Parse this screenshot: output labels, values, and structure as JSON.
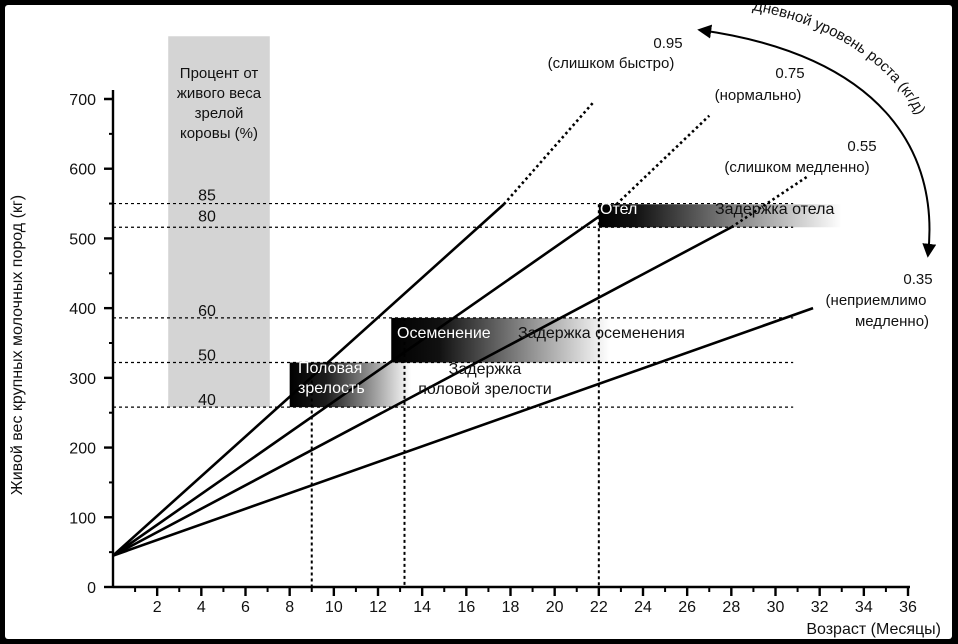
{
  "chart_data": {
    "type": "line",
    "title": "",
    "xlabel": "Возраст (Месяцы)",
    "ylabel": "Живой вес крупных молочных пород (кг)",
    "xlim": [
      0,
      36
    ],
    "ylim": [
      0,
      700
    ],
    "x_ticks": [
      "2",
      "4",
      "6",
      "8",
      "10",
      "12",
      "14",
      "16",
      "18",
      "20",
      "22",
      "24",
      "26",
      "28",
      "30",
      "32",
      "34",
      "36"
    ],
    "y_ticks": [
      "0",
      "100",
      "200",
      "300",
      "400",
      "500",
      "600",
      "700"
    ],
    "series": [
      {
        "name": "0.95",
        "start": [
          0,
          45
        ],
        "end": [
          17.7,
          549
        ],
        "dotted_end": [
          21.8,
          697
        ],
        "label_lines": [
          "0.95",
          "(слишком быстро)"
        ]
      },
      {
        "name": "0.75",
        "start": [
          0,
          45
        ],
        "end": [
          22.8,
          549
        ],
        "dotted_end": [
          27.0,
          676
        ],
        "label_lines": [
          "0.75",
          "(нормально)"
        ]
      },
      {
        "name": "0.55",
        "start": [
          0,
          45
        ],
        "end": [
          28.0,
          516
        ],
        "dotted_end": [
          31.5,
          590
        ],
        "label_lines": [
          "0.55",
          "(слишком медленно)"
        ]
      },
      {
        "name": "0.35",
        "start": [
          0,
          45
        ],
        "end": [
          31.7,
          400
        ],
        "dotted_end": null,
        "label_lines": [
          "0.35",
          "(неприемлимо",
          "медленно)"
        ]
      }
    ],
    "reference_weights": [
      {
        "percent": "85",
        "weight": 550
      },
      {
        "percent": "80",
        "weight": 516
      },
      {
        "percent": "60",
        "weight": 386
      },
      {
        "percent": "50",
        "weight": 322
      },
      {
        "percent": "40",
        "weight": 258
      }
    ],
    "reference_ages": [
      {
        "age": 9,
        "top_weight": 322
      },
      {
        "age": 13.2,
        "top_weight": 386
      },
      {
        "age": 22,
        "top_weight": 549
      }
    ],
    "percent_panel": {
      "x_range": [
        2.5,
        7.1
      ],
      "y_range": [
        258,
        790
      ],
      "title_lines": [
        "Процент от",
        "живого веса",
        "зрелой",
        "коровы (%)"
      ]
    },
    "bands": [
      {
        "id": "puberty",
        "x_range": [
          8.0,
          13.5
        ],
        "y_range": [
          258,
          322
        ],
        "label_lines": [
          "Половая",
          "зрелость"
        ],
        "delay_lines": [
          "Задержка",
          "половой зрелости"
        ]
      },
      {
        "id": "insemination",
        "x_range": [
          12.6,
          22.5
        ],
        "y_range": [
          322,
          386
        ],
        "label_lines": [
          "Осеменение"
        ],
        "delay_lines": [
          "Задержка осеменения"
        ]
      },
      {
        "id": "calving",
        "x_range": [
          22.0,
          33.0
        ],
        "y_range": [
          516,
          549
        ],
        "label_lines": [
          "Отел"
        ],
        "delay_lines": [
          "Задержка отела"
        ]
      }
    ],
    "growth_arrow_label": "Дневной уровень роста (кг/д)",
    "grid": false,
    "legend": "none"
  }
}
